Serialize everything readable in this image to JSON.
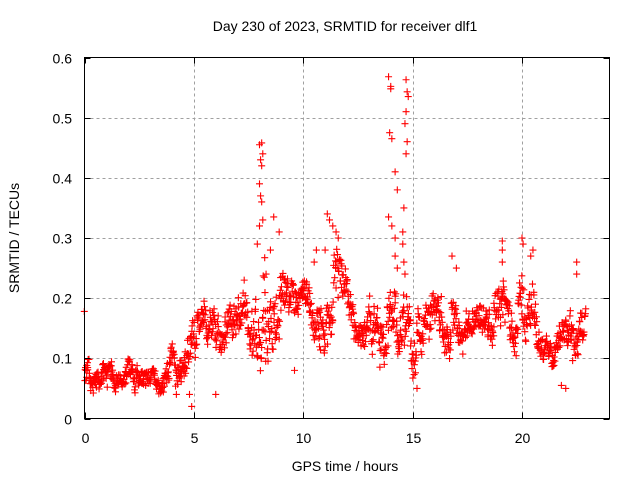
{
  "chart_data": {
    "type": "scatter",
    "title": "Day 230 of 2023, SRMTID for receiver dlf1",
    "xlabel": "GPS time / hours",
    "ylabel": "SRMTID / TECUs",
    "xlim": [
      0,
      24
    ],
    "ylim": [
      0,
      0.6
    ],
    "xticks": [
      0,
      5,
      10,
      15,
      20
    ],
    "xtick_labels": [
      "0",
      "5",
      "10",
      "15",
      "20"
    ],
    "yticks": [
      0,
      0.1,
      0.2,
      0.3,
      0.4,
      0.5,
      0.6
    ],
    "ytick_labels": [
      "0",
      "0.1",
      "0.2",
      "0.3",
      "0.4",
      "0.5",
      "0.6"
    ],
    "grid": true,
    "marker": "+",
    "color": "#ff0000",
    "series": [
      {
        "name": "SRMTID",
        "envelope": [
          {
            "x": 0.0,
            "lo": 0.04,
            "hi": 0.1
          },
          {
            "x": 0.5,
            "lo": 0.04,
            "hi": 0.11
          },
          {
            "x": 1.0,
            "lo": 0.04,
            "hi": 0.1
          },
          {
            "x": 1.5,
            "lo": 0.045,
            "hi": 0.095
          },
          {
            "x": 2.0,
            "lo": 0.035,
            "hi": 0.1
          },
          {
            "x": 2.5,
            "lo": 0.035,
            "hi": 0.09
          },
          {
            "x": 3.0,
            "lo": 0.035,
            "hi": 0.09
          },
          {
            "x": 3.5,
            "lo": 0.04,
            "hi": 0.1
          },
          {
            "x": 4.0,
            "lo": 0.05,
            "hi": 0.13
          },
          {
            "x": 4.5,
            "lo": 0.06,
            "hi": 0.14
          },
          {
            "x": 5.0,
            "lo": 0.07,
            "hi": 0.17
          },
          {
            "x": 5.5,
            "lo": 0.08,
            "hi": 0.2
          },
          {
            "x": 6.0,
            "lo": 0.09,
            "hi": 0.19
          },
          {
            "x": 6.5,
            "lo": 0.1,
            "hi": 0.21
          },
          {
            "x": 7.0,
            "lo": 0.1,
            "hi": 0.22
          },
          {
            "x": 7.5,
            "lo": 0.09,
            "hi": 0.2
          },
          {
            "x": 8.0,
            "lo": 0.07,
            "hi": 0.3
          },
          {
            "x": 8.5,
            "lo": 0.1,
            "hi": 0.28
          },
          {
            "x": 9.0,
            "lo": 0.12,
            "hi": 0.26
          },
          {
            "x": 9.5,
            "lo": 0.14,
            "hi": 0.24
          },
          {
            "x": 10.0,
            "lo": 0.15,
            "hi": 0.23
          },
          {
            "x": 10.5,
            "lo": 0.12,
            "hi": 0.23
          },
          {
            "x": 11.0,
            "lo": 0.1,
            "hi": 0.26
          },
          {
            "x": 11.5,
            "lo": 0.12,
            "hi": 0.3
          },
          {
            "x": 12.0,
            "lo": 0.14,
            "hi": 0.24
          },
          {
            "x": 12.5,
            "lo": 0.12,
            "hi": 0.2
          },
          {
            "x": 13.0,
            "lo": 0.1,
            "hi": 0.22
          },
          {
            "x": 13.5,
            "lo": 0.08,
            "hi": 0.2
          },
          {
            "x": 14.0,
            "lo": 0.08,
            "hi": 0.22
          },
          {
            "x": 14.5,
            "lo": 0.1,
            "hi": 0.24
          },
          {
            "x": 15.0,
            "lo": 0.06,
            "hi": 0.19
          },
          {
            "x": 15.5,
            "lo": 0.1,
            "hi": 0.19
          },
          {
            "x": 16.0,
            "lo": 0.11,
            "hi": 0.22
          },
          {
            "x": 16.5,
            "lo": 0.09,
            "hi": 0.21
          },
          {
            "x": 17.0,
            "lo": 0.09,
            "hi": 0.19
          },
          {
            "x": 17.5,
            "lo": 0.09,
            "hi": 0.18
          },
          {
            "x": 18.0,
            "lo": 0.1,
            "hi": 0.19
          },
          {
            "x": 18.5,
            "lo": 0.09,
            "hi": 0.18
          },
          {
            "x": 19.0,
            "lo": 0.1,
            "hi": 0.24
          },
          {
            "x": 19.5,
            "lo": 0.1,
            "hi": 0.2
          },
          {
            "x": 20.0,
            "lo": 0.1,
            "hi": 0.25
          },
          {
            "x": 20.5,
            "lo": 0.12,
            "hi": 0.25
          },
          {
            "x": 21.0,
            "lo": 0.09,
            "hi": 0.15
          },
          {
            "x": 21.5,
            "lo": 0.08,
            "hi": 0.14
          },
          {
            "x": 22.0,
            "lo": 0.07,
            "hi": 0.18
          },
          {
            "x": 22.5,
            "lo": 0.09,
            "hi": 0.2
          },
          {
            "x": 22.9,
            "lo": 0.14,
            "hi": 0.2
          }
        ],
        "outliers": [
          [
            8.0,
            0.455
          ],
          [
            8.1,
            0.458
          ],
          [
            8.05,
            0.43
          ],
          [
            8.15,
            0.44
          ],
          [
            8.1,
            0.42
          ],
          [
            8.0,
            0.39
          ],
          [
            8.05,
            0.37
          ],
          [
            8.1,
            0.36
          ],
          [
            8.15,
            0.33
          ],
          [
            8.0,
            0.32
          ],
          [
            8.5,
            0.28
          ],
          [
            8.65,
            0.335
          ],
          [
            8.3,
            0.24
          ],
          [
            8.9,
            0.31
          ],
          [
            7.3,
            0.23
          ],
          [
            7.9,
            0.29
          ],
          [
            11.1,
            0.34
          ],
          [
            11.2,
            0.33
          ],
          [
            11.35,
            0.32
          ],
          [
            11.5,
            0.31
          ],
          [
            11.6,
            0.3
          ],
          [
            11.0,
            0.28
          ],
          [
            10.5,
            0.26
          ],
          [
            10.6,
            0.28
          ],
          [
            13.9,
            0.568
          ],
          [
            14.0,
            0.552
          ],
          [
            14.0,
            0.548
          ],
          [
            13.95,
            0.475
          ],
          [
            14.05,
            0.465
          ],
          [
            13.9,
            0.335
          ],
          [
            14.05,
            0.32
          ],
          [
            14.2,
            0.3
          ],
          [
            14.3,
            0.38
          ],
          [
            14.2,
            0.41
          ],
          [
            14.7,
            0.563
          ],
          [
            14.75,
            0.543
          ],
          [
            14.8,
            0.535
          ],
          [
            14.7,
            0.51
          ],
          [
            14.65,
            0.49
          ],
          [
            14.75,
            0.46
          ],
          [
            14.7,
            0.44
          ],
          [
            14.6,
            0.35
          ],
          [
            14.55,
            0.31
          ],
          [
            14.55,
            0.29
          ],
          [
            14.6,
            0.26
          ],
          [
            14.65,
            0.24
          ],
          [
            14.2,
            0.27
          ],
          [
            14.3,
            0.25
          ],
          [
            16.8,
            0.27
          ],
          [
            17.0,
            0.25
          ],
          [
            19.1,
            0.295
          ],
          [
            19.1,
            0.28
          ],
          [
            19.1,
            0.26
          ],
          [
            20.0,
            0.3
          ],
          [
            20.05,
            0.29
          ],
          [
            20.5,
            0.28
          ],
          [
            20.4,
            0.27
          ],
          [
            22.5,
            0.26
          ],
          [
            22.5,
            0.24
          ],
          [
            4.9,
            0.02
          ],
          [
            4.8,
            0.04
          ],
          [
            6.0,
            0.04
          ],
          [
            9.6,
            0.08
          ],
          [
            15.2,
            0.05
          ],
          [
            21.8,
            0.055
          ],
          [
            22.0,
            0.05
          ],
          [
            4.2,
            0.04
          ]
        ],
        "n_points": 1400
      }
    ]
  }
}
